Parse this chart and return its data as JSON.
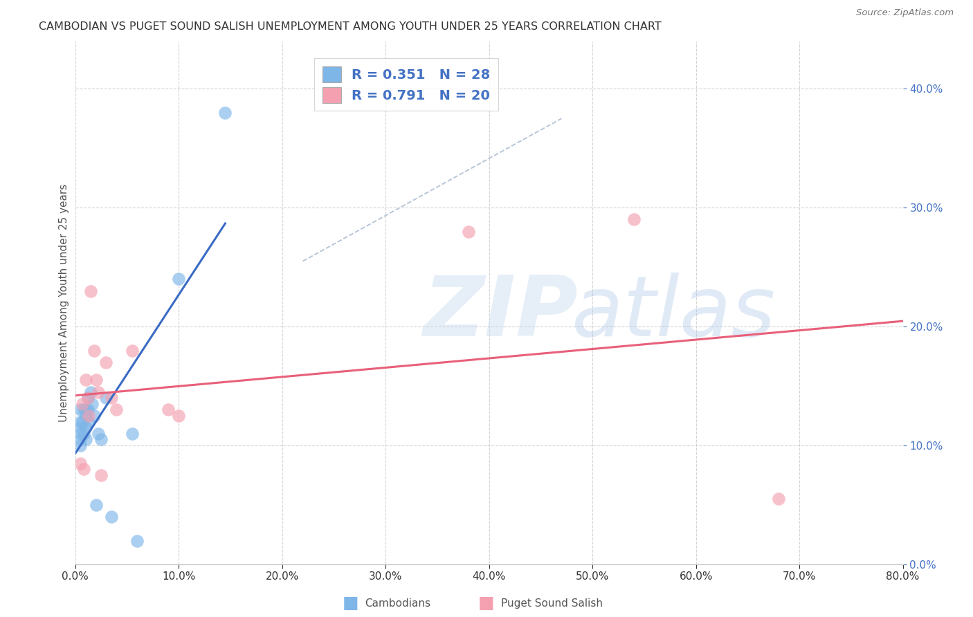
{
  "title": "CAMBODIAN VS PUGET SOUND SALISH UNEMPLOYMENT AMONG YOUTH UNDER 25 YEARS CORRELATION CHART",
  "source": "Source: ZipAtlas.com",
  "ylabel": "Unemployment Among Youth under 25 years",
  "xlabel_cambodians": "Cambodians",
  "xlabel_puget": "Puget Sound Salish",
  "xlim": [
    0.0,
    0.8
  ],
  "ylim": [
    0.0,
    0.44
  ],
  "yticks": [
    0.0,
    0.1,
    0.2,
    0.3,
    0.4
  ],
  "xticks": [
    0.0,
    0.1,
    0.2,
    0.3,
    0.4,
    0.5,
    0.6,
    0.7,
    0.8
  ],
  "cambodian_color": "#7EB6E8",
  "puget_color": "#F4A0B0",
  "cambodian_line_color": "#3A6BC4",
  "puget_line_color": "#E8607A",
  "legend_text_color": "#4472C4",
  "r_cambodian": 0.351,
  "n_cambodian": 28,
  "r_puget": 0.791,
  "n_puget": 20,
  "cambodian_x": [
    0.005,
    0.005,
    0.005,
    0.005,
    0.005,
    0.005,
    0.007,
    0.008,
    0.008,
    0.01,
    0.01,
    0.01,
    0.01,
    0.012,
    0.012,
    0.013,
    0.015,
    0.016,
    0.018,
    0.02,
    0.022,
    0.025,
    0.03,
    0.035,
    0.055,
    0.06,
    0.1,
    0.145
  ],
  "cambodian_y": [
    0.13,
    0.12,
    0.115,
    0.11,
    0.105,
    0.1,
    0.12,
    0.13,
    0.11,
    0.13,
    0.125,
    0.115,
    0.105,
    0.14,
    0.13,
    0.12,
    0.145,
    0.135,
    0.125,
    0.05,
    0.11,
    0.105,
    0.14,
    0.04,
    0.11,
    0.02,
    0.24,
    0.38
  ],
  "puget_x": [
    0.005,
    0.007,
    0.008,
    0.01,
    0.012,
    0.013,
    0.015,
    0.018,
    0.02,
    0.022,
    0.025,
    0.03,
    0.035,
    0.04,
    0.055,
    0.09,
    0.1,
    0.38,
    0.54,
    0.68
  ],
  "puget_y": [
    0.085,
    0.135,
    0.08,
    0.155,
    0.14,
    0.125,
    0.23,
    0.18,
    0.155,
    0.145,
    0.075,
    0.17,
    0.14,
    0.13,
    0.18,
    0.13,
    0.125,
    0.28,
    0.29,
    0.055
  ],
  "dash_line_x": [
    0.22,
    0.47
  ],
  "dash_line_y": [
    0.255,
    0.375
  ]
}
